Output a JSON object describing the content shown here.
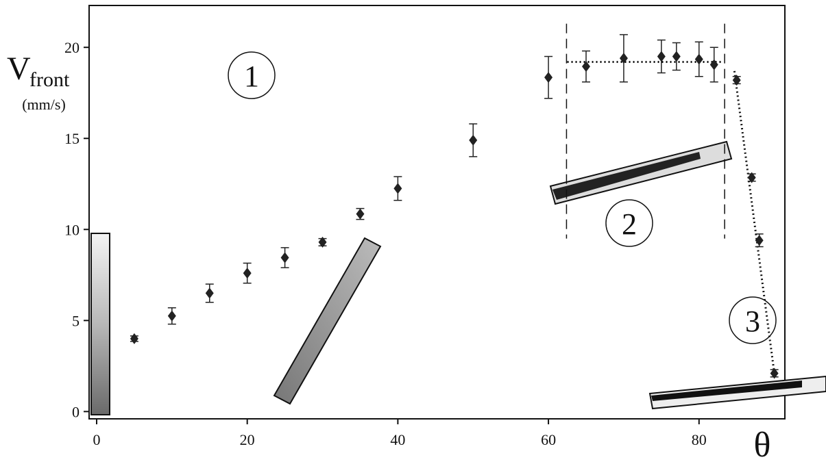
{
  "chart_data": {
    "type": "scatter",
    "x_label": "θ",
    "y_label": "V",
    "y_label_subscript": "front",
    "y_label_unit": "(mm/s)",
    "annotations": [
      "1",
      "2",
      "3"
    ],
    "series": [
      {
        "color": "#222222",
        "x": [
          5,
          10,
          15,
          20,
          25,
          30,
          35,
          40,
          50,
          60,
          65,
          70,
          75,
          77,
          80,
          82,
          85,
          87,
          88,
          90
        ],
        "values": [
          4.0,
          5.25,
          6.5,
          7.6,
          8.45,
          9.3,
          10.85,
          12.25,
          14.9,
          18.35,
          18.95,
          19.4,
          19.5,
          19.5,
          19.35,
          19.05,
          18.2,
          12.85,
          9.4,
          2.1
        ],
        "errors": [
          0.15,
          0.45,
          0.5,
          0.55,
          0.55,
          0.2,
          0.3,
          0.65,
          0.9,
          1.15,
          0.85,
          1.3,
          0.9,
          0.75,
          0.95,
          0.95,
          0.2,
          0.2,
          0.35,
          0.2
        ]
      }
    ],
    "lines": [
      {
        "style": "dashed",
        "x": [
          62.4,
          62.4
        ],
        "y": [
          21.3,
          9.5
        ]
      },
      {
        "style": "dashed",
        "x": [
          83.4,
          83.4
        ],
        "y": [
          21.3,
          9.5
        ]
      },
      {
        "style": "dotted",
        "x": [
          62.5,
          83.2
        ],
        "y": [
          19.2,
          19.2
        ]
      },
      {
        "style": "dotted",
        "x": [
          84.7,
          90
        ],
        "y": [
          18.7,
          2.1
        ]
      }
    ],
    "xlim": [
      -1,
      91.4
    ],
    "ylim": [
      -0.4,
      22.3
    ],
    "xticks": [
      0,
      20,
      40,
      60,
      80
    ],
    "yticks": [
      0,
      5,
      10,
      15,
      20
    ]
  }
}
